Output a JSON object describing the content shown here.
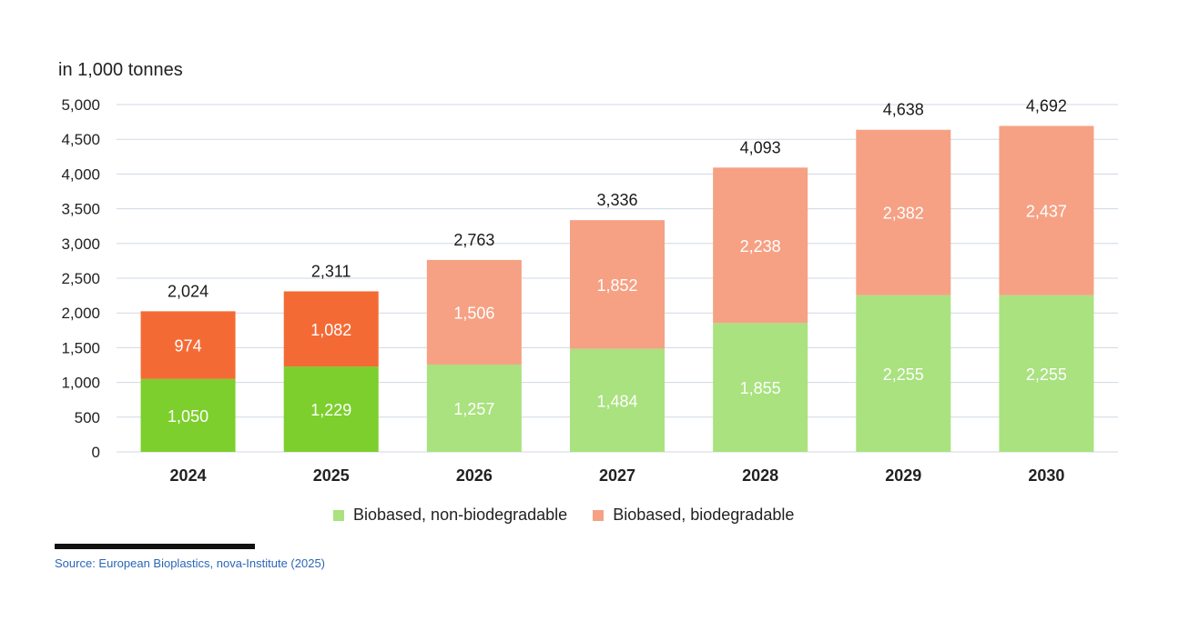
{
  "source": "Source: European Bioplastics, nova-Institute (2025)",
  "colors": {
    "bio_non_biodeg_actual": "#7ccf2c",
    "bio_biodeg_actual": "#f46a35",
    "bio_non_biodeg_forecast": "#a9e27e",
    "bio_biodeg_forecast": "#f6a184",
    "grid": "#cfd8e3"
  },
  "chart_data": {
    "type": "bar",
    "stacked": true,
    "unit_label": "in 1,000 tonnes",
    "categories": [
      "2024",
      "2025",
      "2026",
      "2027",
      "2028",
      "2029",
      "2030"
    ],
    "series": [
      {
        "name": "Biobased, non-biodegradable",
        "values": [
          1050,
          1229,
          1257,
          1484,
          1855,
          2255,
          2255
        ]
      },
      {
        "name": "Biobased, biodegradable",
        "values": [
          974,
          1082,
          1506,
          1852,
          2238,
          2382,
          2437
        ]
      }
    ],
    "totals": [
      2024,
      2311,
      2763,
      3336,
      4093,
      4638,
      4692
    ],
    "ylim": [
      0,
      5000
    ],
    "yticks": [
      0,
      500,
      1000,
      1500,
      2000,
      2500,
      3000,
      3500,
      4000,
      4500,
      5000
    ],
    "grid": true,
    "legend_position": "bottom"
  }
}
